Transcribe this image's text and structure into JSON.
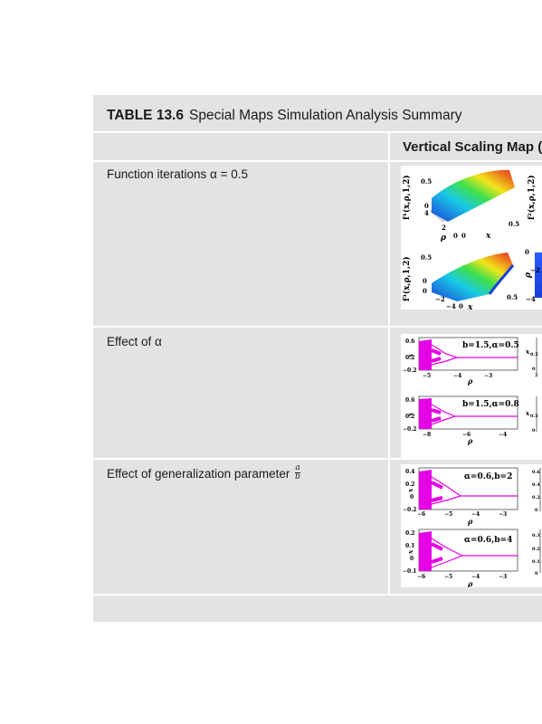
{
  "table": {
    "number": "TABLE 13.6",
    "title": "Special Maps Simulation Analysis Summary",
    "column_header": "Vertical Scaling Map (α",
    "rows": [
      {
        "label": "Function iterations α = 0.5",
        "plots": {
          "p1_ylabel": "f¹(x,ρ,1,2)",
          "p2_ylabel": "f²(x,ρ,1,2)",
          "p3_ylabel": "f³(x,ρ,1,2)",
          "p1_ticks": [
            "0.5",
            "0",
            "4",
            "2",
            "0",
            "0",
            "0.5"
          ],
          "p1_axes": [
            "ρ",
            "x"
          ],
          "p3_ticks": [
            "0.5",
            "0",
            "0",
            "−2",
            "−4",
            "0",
            "0.5"
          ],
          "p3_axes": [
            "ρ",
            "x"
          ],
          "p4_ticks": [
            "0",
            "ρ",
            "−2",
            "−4"
          ]
        }
      },
      {
        "label": "Effect of α",
        "plots": [
          {
            "annotation": "b=1.5,α=0.5",
            "yticks": [
              "0.6",
              "0.2",
              "−0.2"
            ],
            "xticks": [
              "−5",
              "−4",
              "−3"
            ],
            "xlabel": "ρ",
            "ylabel": "x"
          },
          {
            "annotation": "b=1.5,α=0.8",
            "yticks": [
              "0.6",
              "0.2",
              "−0.2"
            ],
            "xticks": [
              "−8",
              "−6",
              "−4"
            ],
            "xlabel": "ρ",
            "ylabel": "x"
          }
        ],
        "side_ticks": [
          "0.5",
          "0",
          "2",
          "0.5",
          "0"
        ]
      },
      {
        "label": "Effect of generalization parameter",
        "frac_num": "a",
        "frac_den": "b",
        "plots": [
          {
            "annotation": "α=0.6,b=2",
            "yticks": [
              "0.4",
              "0.2",
              "0",
              "−0.2"
            ],
            "xticks": [
              "−6",
              "−5",
              "−4",
              "−3"
            ],
            "xlabel": "ρ",
            "ylabel": "x"
          },
          {
            "annotation": "α=0.6,b=4",
            "yticks": [
              "0.2",
              "0.1",
              "0",
              "−0.1"
            ],
            "xticks": [
              "−6",
              "−5",
              "−4",
              "−3"
            ],
            "xlabel": "ρ",
            "ylabel": "x"
          }
        ],
        "side_ticks": [
          "0.6",
          "0.4",
          "0.2",
          "0",
          "0.3",
          "0.2",
          "0.1",
          "0"
        ]
      }
    ]
  },
  "colors": {
    "panel": "#e4e3e4",
    "bifurcation": "#e600e6",
    "surface_hot": "#e8261f",
    "surface_cold": "#1a3fd6"
  }
}
